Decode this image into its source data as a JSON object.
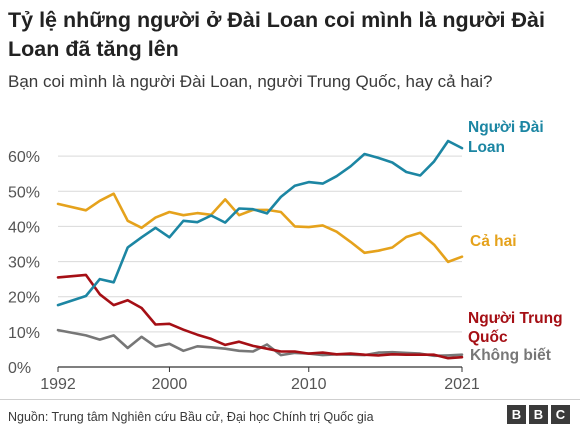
{
  "header": {
    "title": "Tỷ lệ những người ở Đài Loan coi mình là người Đài Loan đã tăng lên",
    "subtitle": "Bạn coi mình là người Đài Loan, người Trung Quốc, hay cả hai?"
  },
  "footer": {
    "source": "Nguồn: Trung tâm Nghiên cứu Bầu cử, Đại học Chính trị Quốc gia",
    "logo_letters": [
      "B",
      "B",
      "C"
    ]
  },
  "chart_data": {
    "type": "line",
    "xlabel": "",
    "ylabel": "",
    "xlim": [
      1992,
      2021
    ],
    "ylim": [
      0,
      70
    ],
    "x_ticks": [
      1992,
      2000,
      2010,
      2021
    ],
    "x_tick_labels": [
      "1992",
      "2000",
      "2010",
      "2021"
    ],
    "y_ticks": [
      0,
      10,
      20,
      30,
      40,
      50,
      60
    ],
    "y_tick_labels": [
      "0%",
      "10%",
      "20%",
      "30%",
      "40%",
      "50%",
      "60%"
    ],
    "grid": true,
    "x": [
      1992,
      1994,
      1995,
      1996,
      1997,
      1998,
      1999,
      2000,
      2001,
      2002,
      2003,
      2004,
      2005,
      2006,
      2007,
      2008,
      2009,
      2010,
      2011,
      2012,
      2013,
      2014,
      2015,
      2016,
      2017,
      2018,
      2019,
      2020,
      2021
    ],
    "series": [
      {
        "name": "Người Đài Loan",
        "label_lines": [
          "Người Đài",
          "Loan"
        ],
        "color": "#1c86a3",
        "values": [
          17.6,
          20.2,
          25.0,
          24.1,
          34.0,
          36.9,
          39.6,
          36.9,
          41.6,
          41.2,
          43.1,
          41.1,
          45.1,
          44.9,
          43.7,
          48.4,
          51.6,
          52.6,
          52.2,
          54.3,
          57.1,
          60.6,
          59.5,
          58.2,
          55.5,
          54.5,
          58.5,
          64.3,
          62.3
        ]
      },
      {
        "name": "Cả hai",
        "label_lines": [
          "Cả hai"
        ],
        "color": "#e5a21c",
        "values": [
          46.4,
          44.6,
          47.3,
          49.3,
          41.6,
          39.6,
          42.5,
          44.1,
          43.2,
          43.8,
          43.3,
          47.7,
          43.2,
          44.7,
          44.7,
          44.1,
          40.0,
          39.8,
          40.3,
          38.5,
          35.6,
          32.5,
          33.1,
          34.0,
          37.0,
          38.2,
          34.8,
          29.9,
          31.4
        ]
      },
      {
        "name": "Người Trung Quốc",
        "label_lines": [
          "Người Trung",
          "Quốc"
        ],
        "color": "#a50f15",
        "values": [
          25.5,
          26.2,
          20.7,
          17.6,
          19.0,
          16.8,
          12.1,
          12.3,
          10.6,
          9.2,
          8.0,
          6.3,
          7.2,
          6.0,
          5.2,
          4.4,
          4.4,
          3.8,
          4.1,
          3.6,
          3.8,
          3.5,
          3.3,
          3.6,
          3.5,
          3.5,
          3.5,
          2.5,
          2.8
        ]
      },
      {
        "name": "Không biết",
        "label_lines": [
          "Không biết"
        ],
        "color": "#777777",
        "values": [
          10.5,
          9.0,
          7.8,
          9.0,
          5.4,
          8.6,
          5.8,
          6.6,
          4.6,
          5.9,
          5.6,
          5.2,
          4.6,
          4.4,
          6.4,
          3.4,
          4.0,
          3.8,
          3.4,
          3.6,
          3.5,
          3.4,
          4.1,
          4.2,
          4.0,
          3.8,
          3.2,
          3.3,
          3.5
        ]
      }
    ]
  }
}
